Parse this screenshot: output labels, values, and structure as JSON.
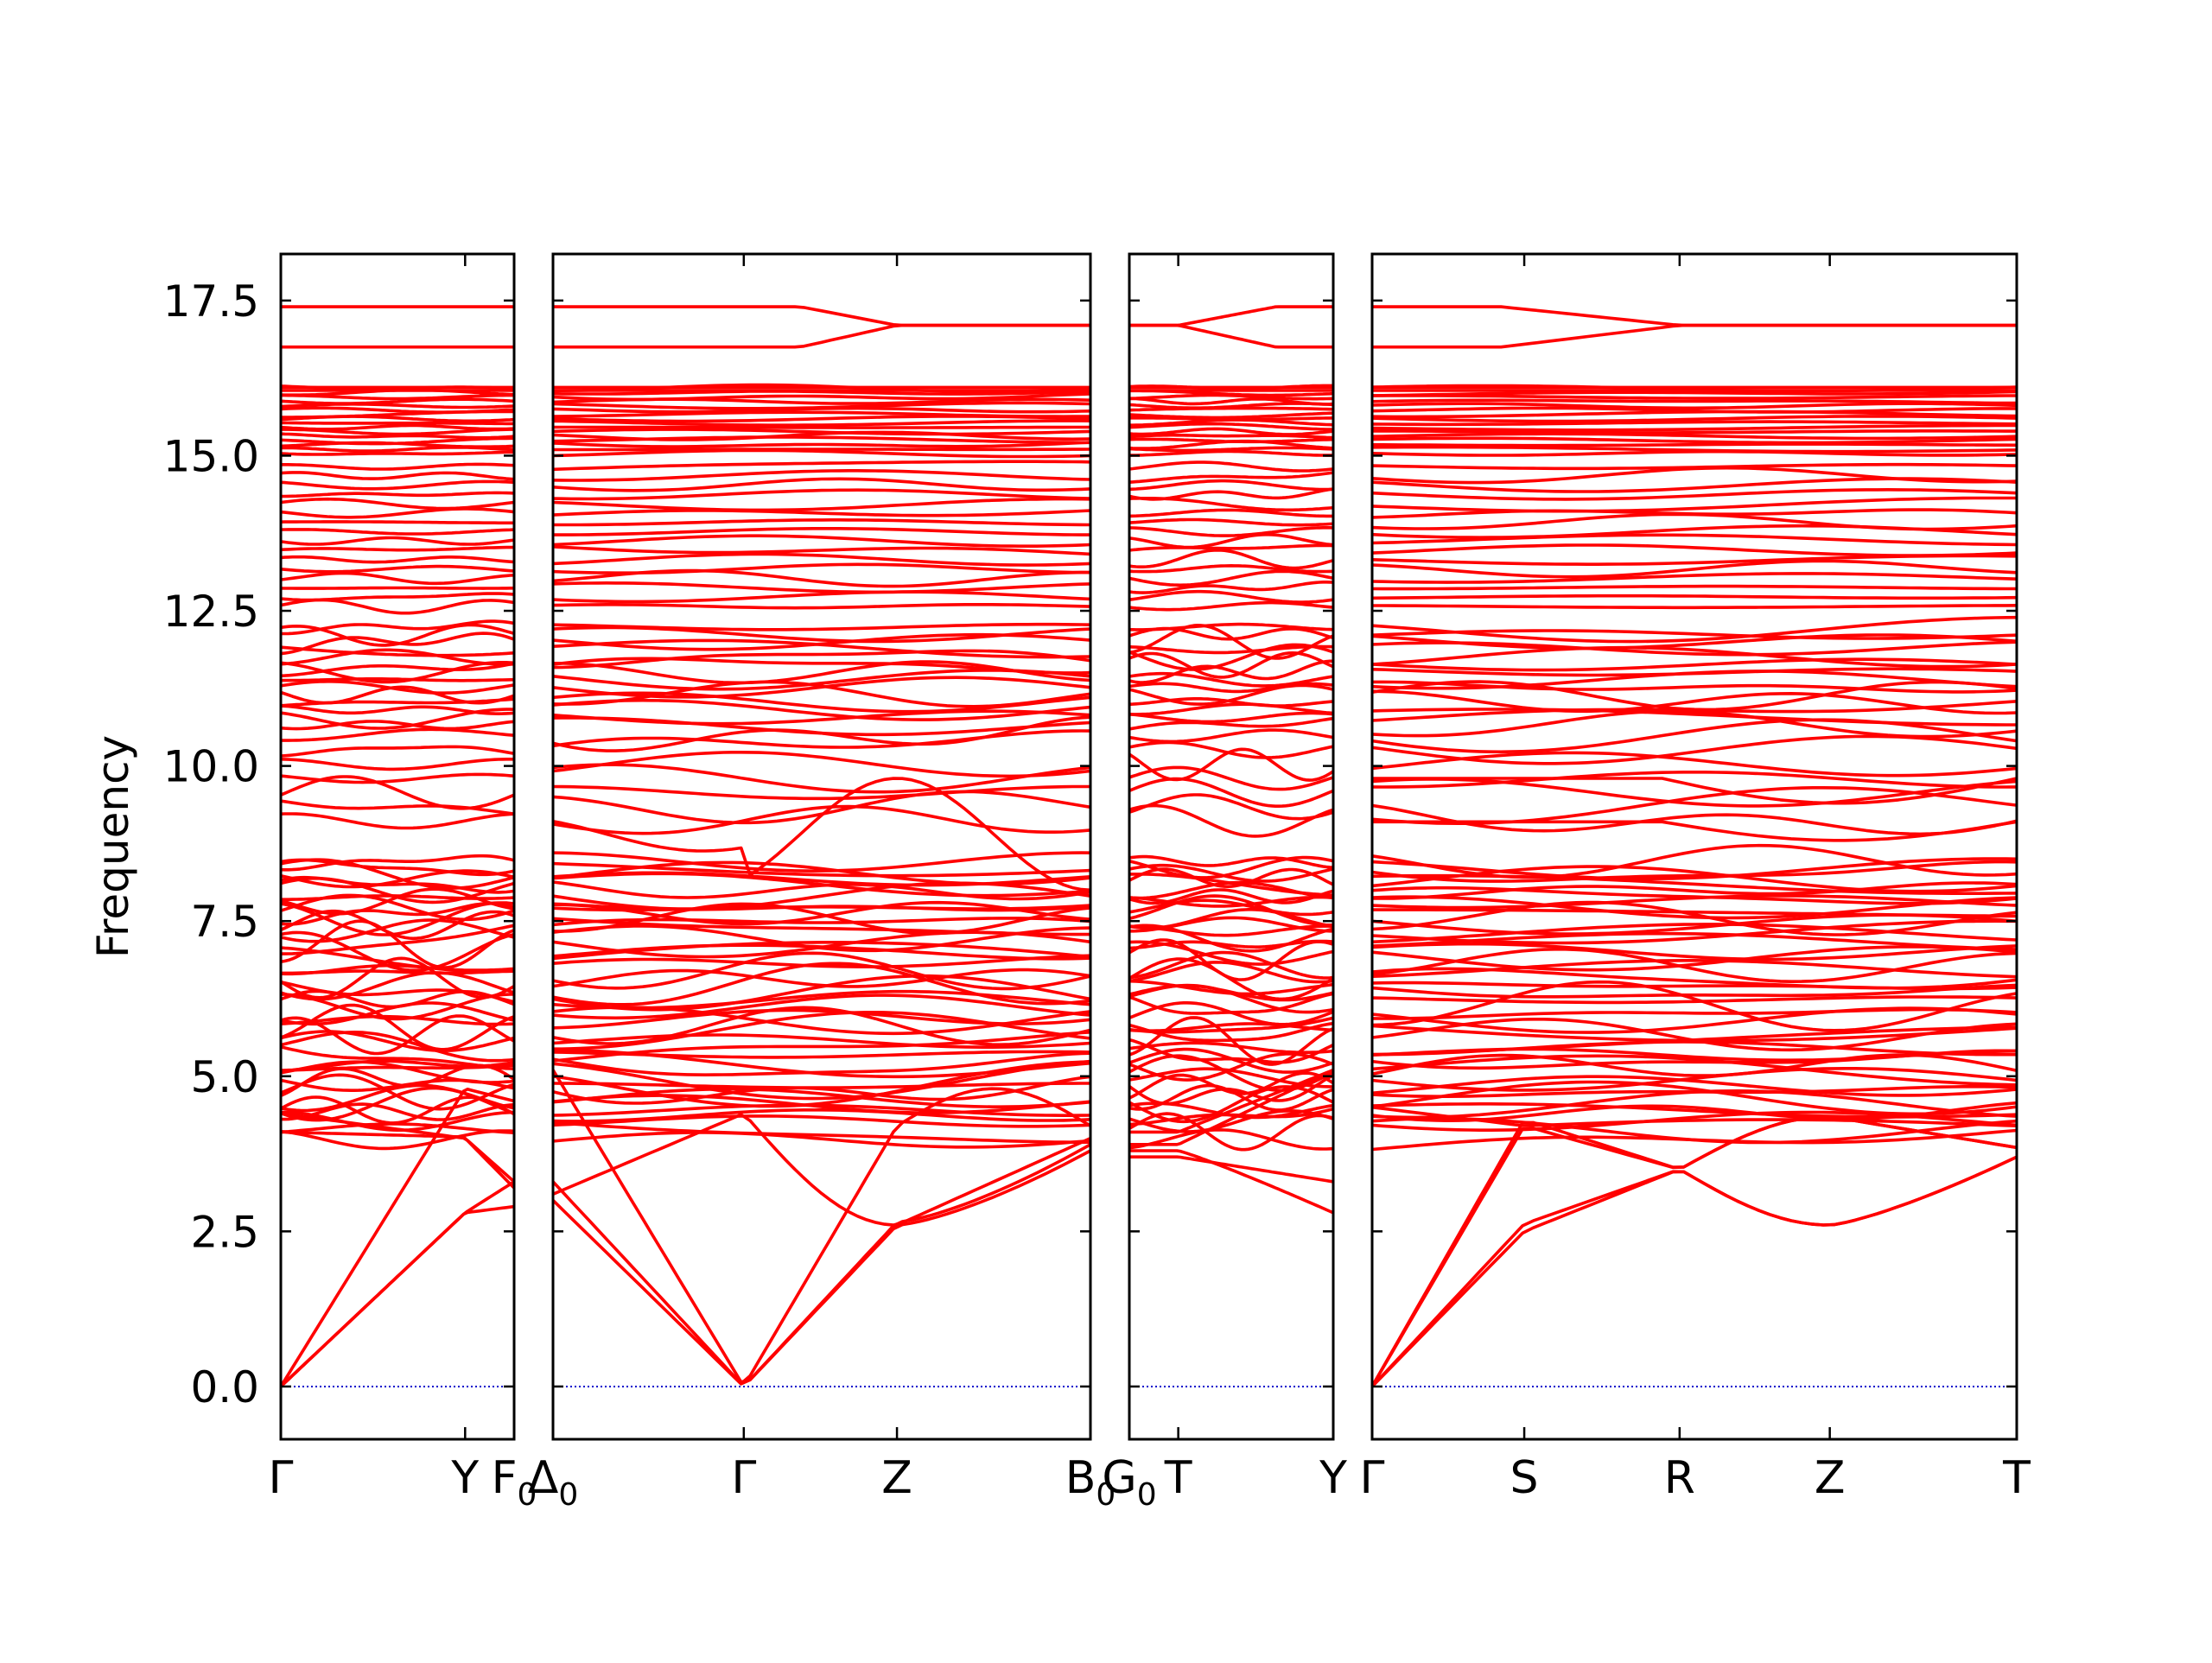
{
  "chart_data": {
    "type": "line",
    "ylabel": "Frequency",
    "xlabel": "",
    "title": "",
    "ylim": [
      -0.85,
      18.25
    ],
    "yticks": [
      0.0,
      2.5,
      5.0,
      7.5,
      10.0,
      12.5,
      15.0,
      17.5
    ],
    "ytick_labels": [
      "0.0",
      "2.5",
      "5.0",
      "7.5",
      "10.0",
      "12.5",
      "15.0",
      "17.5"
    ],
    "grid": false,
    "band_color": "#ff0000",
    "zero_line_color": "#0000cc",
    "panels": [
      {
        "path": [
          "Γ",
          "Y",
          "F₀"
        ],
        "ticks": [
          0,
          0.79,
          1.0
        ],
        "tick_labels": [
          {
            "main": "Γ",
            "sub": ""
          },
          {
            "main": "Y",
            "sub": ""
          },
          {
            "main": "F",
            "sub": "0"
          }
        ],
        "flat_bands": [
          17.4,
          16.75
        ],
        "acoustic_endpoints": [
          {
            "start": 0,
            "mid": 2.8,
            "end": 2.9
          },
          {
            "start": 0,
            "mid": 2.8,
            "end": 3.3
          },
          {
            "start": 0,
            "mid": 4.8,
            "end": 4.6
          }
        ]
      },
      {
        "path": [
          "Δ₀",
          "Γ",
          "Z",
          "B₀"
        ],
        "ticks": [
          0,
          0.355,
          0.64,
          1.0
        ],
        "tick_labels": [
          {
            "main": "Δ",
            "sub": "0"
          },
          {
            "main": "Γ",
            "sub": ""
          },
          {
            "main": "Z",
            "sub": ""
          },
          {
            "main": "B",
            "sub": "0"
          }
        ],
        "merge_bands": {
          "a": 17.4,
          "b": 16.75,
          "merged": 17.1
        },
        "acoustic_points": {
          "gamma": 0,
          "z_low": 2.6,
          "z_high": 4.2,
          "end": 3.8
        }
      },
      {
        "path": [
          "G₀",
          "T",
          "Y"
        ],
        "ticks": [
          0,
          0.24,
          1.0
        ],
        "tick_labels": [
          {
            "main": "G",
            "sub": "0"
          },
          {
            "main": "T",
            "sub": ""
          },
          {
            "main": "Y",
            "sub": ""
          }
        ],
        "split_bands": {
          "merged": 17.1,
          "a": 17.4,
          "b": 16.75
        },
        "low_band_end": 2.8
      },
      {
        "path": [
          "Γ",
          "S",
          "R",
          "Z",
          "T"
        ],
        "ticks": [
          0,
          0.236,
          0.477,
          0.71,
          1.0
        ],
        "tick_labels": [
          {
            "main": "Γ",
            "sub": ""
          },
          {
            "main": "S",
            "sub": ""
          },
          {
            "main": "R",
            "sub": ""
          },
          {
            "main": "Z",
            "sub": ""
          },
          {
            "main": "T",
            "sub": ""
          }
        ],
        "merge_bands": {
          "a": 17.4,
          "b": 16.75,
          "merged": 17.1
        },
        "acoustic_points": {
          "gamma": 0,
          "s_low": 2.5,
          "s_high": 4.2,
          "r": 3.5,
          "z": 2.6,
          "t": 3.7
        }
      }
    ]
  }
}
